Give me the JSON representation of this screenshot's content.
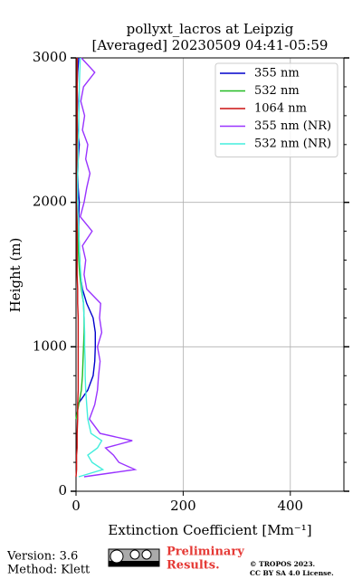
{
  "chart_data": {
    "type": "line",
    "title": "pollyxt_lacros at Leipzig",
    "subtitle": "[Averaged] 20230509 04:41-05:59",
    "x_label": "Extinction Coefficient [Mm⁻¹]",
    "y_label": "Height (m)",
    "heights": [
      100,
      150,
      200,
      250,
      300,
      350,
      400,
      500,
      600,
      700,
      800,
      900,
      1000,
      1100,
      1200,
      1300,
      1400,
      1500,
      1600,
      1700,
      1800,
      1900,
      2000,
      2100,
      2200,
      2300,
      2400,
      2500,
      2600,
      2700,
      2800,
      2900,
      3000
    ],
    "series": [
      {
        "name": "355 nm",
        "color": "#0000cc",
        "values": [
          null,
          null,
          null,
          null,
          null,
          null,
          null,
          null,
          3,
          22,
          32,
          35,
          36,
          36,
          32,
          20,
          12,
          8,
          7,
          6,
          5,
          5,
          6,
          4,
          3,
          4,
          6,
          3,
          2,
          3,
          2,
          3,
          5
        ]
      },
      {
        "name": "532 nm",
        "color": "#22bb22",
        "values": [
          null,
          null,
          null,
          null,
          null,
          null,
          null,
          0,
          5,
          10,
          12,
          13,
          14,
          15,
          15,
          14,
          10,
          7,
          5,
          4,
          3,
          3,
          3,
          3,
          2,
          2,
          3,
          2,
          2,
          2,
          2,
          2,
          2
        ]
      },
      {
        "name": "1064 nm",
        "color": "#cc1111",
        "values": [
          0,
          1,
          1,
          1,
          2,
          2,
          2,
          3,
          3,
          4,
          4,
          4,
          4,
          4,
          4,
          3,
          3,
          2,
          2,
          2,
          2,
          2,
          2,
          2,
          2,
          2,
          2,
          2,
          2,
          2,
          2,
          2,
          2
        ]
      },
      {
        "name": "355 nm (NR)",
        "color": "#9933ff",
        "values": [
          15,
          110,
          80,
          70,
          55,
          105,
          45,
          25,
          35,
          40,
          42,
          45,
          40,
          48,
          44,
          46,
          20,
          15,
          18,
          12,
          30,
          8,
          15,
          20,
          26,
          18,
          22,
          12,
          16,
          9,
          14,
          35,
          10
        ]
      },
      {
        "name": "532 nm (NR)",
        "color": "#44eedd",
        "values": [
          5,
          50,
          30,
          22,
          40,
          48,
          28,
          22,
          20,
          18,
          17,
          17,
          16,
          16,
          15,
          14,
          11,
          9,
          7,
          6,
          5,
          4,
          3,
          3,
          3,
          4,
          4,
          5,
          5,
          6,
          6,
          7,
          8
        ]
      }
    ],
    "xlim": [
      0,
      500
    ],
    "xticks": [
      0,
      200,
      400
    ],
    "ylim": [
      0,
      3000
    ],
    "yticks": [
      0,
      1000,
      2000,
      3000
    ],
    "yminorticks": [
      200,
      400,
      600,
      800,
      1200,
      1400,
      1600,
      1800,
      2200,
      2400,
      2600,
      2800
    ],
    "grid": true,
    "legend": "upper right"
  },
  "footer": {
    "version": "Version: 3.6",
    "method": "Method: Klett",
    "notice": [
      "Preliminary",
      "Results."
    ],
    "copyright": "© TROPOS 2023.",
    "license": "CC BY SA 4.0 License."
  }
}
